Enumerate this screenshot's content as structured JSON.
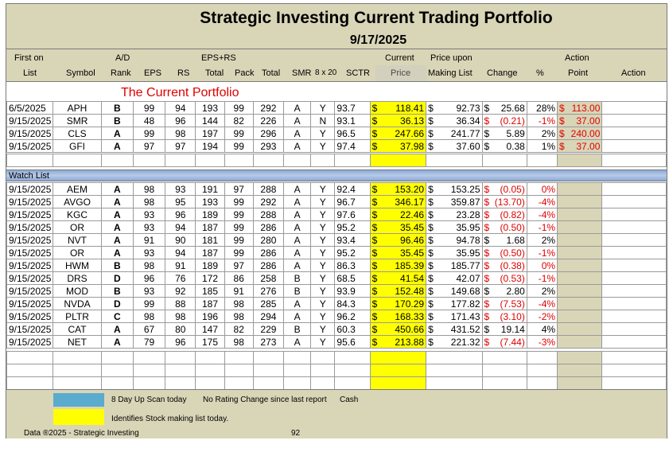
{
  "title": "Strategic Investing Current Trading Portfolio",
  "date": "9/17/2025",
  "headers": {
    "first_on": "First on",
    "list": "List",
    "symbol": "Symbol",
    "ad": "A/D",
    "rank": "Rank",
    "eps": "EPS",
    "rs": "RS",
    "eps_rs": "EPS+RS",
    "total": "Total",
    "pack": "Pack",
    "total2": "Total",
    "smr": "SMR",
    "x20": "8 x 20",
    "sctr": "SCTR",
    "current": "Current",
    "price": "Price",
    "price_upon": "Price upon",
    "making_list": "Making List",
    "change": "Change",
    "pct": "%",
    "action": "Action",
    "point": "Point",
    "action2": "Action"
  },
  "portfolio_title": "The Current Portfolio",
  "portfolio": [
    {
      "date": "6/5/2025",
      "symbol": "APH",
      "rank": "B",
      "eps": "99",
      "rs": "94",
      "total": "193",
      "pack": "99",
      "total2": "292",
      "smr": "A",
      "x20": "Y",
      "sctr": "93.7",
      "price": "118.41",
      "making": "92.73",
      "change": "25.68",
      "pct": "28%",
      "action": "113.00",
      "neg": false
    },
    {
      "date": "9/15/2025",
      "symbol": "SMR",
      "rank": "B",
      "eps": "48",
      "rs": "96",
      "total": "144",
      "pack": "82",
      "total2": "226",
      "smr": "A",
      "x20": "N",
      "sctr": "93.1",
      "price": "36.13",
      "making": "36.34",
      "change": "(0.21)",
      "pct": "-1%",
      "action": "37.00",
      "neg": true
    },
    {
      "date": "9/15/2025",
      "symbol": "CLS",
      "rank": "A",
      "eps": "99",
      "rs": "98",
      "total": "197",
      "pack": "99",
      "total2": "296",
      "smr": "A",
      "x20": "Y",
      "sctr": "96.5",
      "price": "247.66",
      "making": "241.77",
      "change": "5.89",
      "pct": "2%",
      "action": "240.00",
      "neg": false
    },
    {
      "date": "9/15/2025",
      "symbol": "GFI",
      "rank": "A",
      "eps": "97",
      "rs": "97",
      "total": "194",
      "pack": "99",
      "total2": "293",
      "smr": "A",
      "x20": "Y",
      "sctr": "97.4",
      "price": "37.98",
      "making": "37.60",
      "change": "0.38",
      "pct": "1%",
      "action": "37.00",
      "neg": false
    }
  ],
  "watch_label": "Watch List",
  "watch": [
    {
      "date": "9/15/2025",
      "symbol": "AEM",
      "rank": "A",
      "eps": "98",
      "rs": "93",
      "total": "191",
      "pack": "97",
      "total2": "288",
      "smr": "A",
      "x20": "Y",
      "sctr": "92.4",
      "price": "153.20",
      "making": "153.25",
      "change": "(0.05)",
      "pct": "0%",
      "neg": true
    },
    {
      "date": "9/15/2025",
      "symbol": "AVGO",
      "rank": "A",
      "eps": "98",
      "rs": "95",
      "total": "193",
      "pack": "99",
      "total2": "292",
      "smr": "A",
      "x20": "Y",
      "sctr": "96.7",
      "price": "346.17",
      "making": "359.87",
      "change": "(13.70)",
      "pct": "-4%",
      "neg": true
    },
    {
      "date": "9/15/2025",
      "symbol": "KGC",
      "rank": "A",
      "eps": "93",
      "rs": "96",
      "total": "189",
      "pack": "99",
      "total2": "288",
      "smr": "A",
      "x20": "Y",
      "sctr": "97.6",
      "price": "22.46",
      "making": "23.28",
      "change": "(0.82)",
      "pct": "-4%",
      "neg": true
    },
    {
      "date": "9/15/2025",
      "symbol": "OR",
      "rank": "A",
      "eps": "93",
      "rs": "94",
      "total": "187",
      "pack": "99",
      "total2": "286",
      "smr": "A",
      "x20": "Y",
      "sctr": "95.2",
      "price": "35.45",
      "making": "35.95",
      "change": "(0.50)",
      "pct": "-1%",
      "neg": true
    },
    {
      "date": "9/15/2025",
      "symbol": "NVT",
      "rank": "A",
      "eps": "91",
      "rs": "90",
      "total": "181",
      "pack": "99",
      "total2": "280",
      "smr": "A",
      "x20": "Y",
      "sctr": "93.4",
      "price": "96.46",
      "making": "94.78",
      "change": "1.68",
      "pct": "2%",
      "neg": false
    },
    {
      "date": "9/15/2025",
      "symbol": "OR",
      "rank": "A",
      "eps": "93",
      "rs": "94",
      "total": "187",
      "pack": "99",
      "total2": "286",
      "smr": "A",
      "x20": "Y",
      "sctr": "95.2",
      "price": "35.45",
      "making": "35.95",
      "change": "(0.50)",
      "pct": "-1%",
      "neg": true
    },
    {
      "date": "9/15/2025",
      "symbol": "HWM",
      "rank": "B",
      "eps": "98",
      "rs": "91",
      "total": "189",
      "pack": "97",
      "total2": "286",
      "smr": "A",
      "x20": "Y",
      "sctr": "86.3",
      "price": "185.39",
      "making": "185.77",
      "change": "(0.38)",
      "pct": "0%",
      "neg": true
    },
    {
      "date": "9/15/2025",
      "symbol": "DRS",
      "rank": "D",
      "eps": "96",
      "rs": "76",
      "total": "172",
      "pack": "86",
      "total2": "258",
      "smr": "B",
      "x20": "Y",
      "sctr": "68.5",
      "price": "41.54",
      "making": "42.07",
      "change": "(0.53)",
      "pct": "-1%",
      "neg": true
    },
    {
      "date": "9/15/2025",
      "symbol": "MOD",
      "rank": "B",
      "eps": "93",
      "rs": "92",
      "total": "185",
      "pack": "91",
      "total2": "276",
      "smr": "B",
      "x20": "Y",
      "sctr": "93.9",
      "price": "152.48",
      "making": "149.68",
      "change": "2.80",
      "pct": "2%",
      "neg": false
    },
    {
      "date": "9/15/2025",
      "symbol": "NVDA",
      "rank": "D",
      "eps": "99",
      "rs": "88",
      "total": "187",
      "pack": "98",
      "total2": "285",
      "smr": "A",
      "x20": "Y",
      "sctr": "84.3",
      "price": "170.29",
      "making": "177.82",
      "change": "(7.53)",
      "pct": "-4%",
      "neg": true
    },
    {
      "date": "9/15/2025",
      "symbol": "PLTR",
      "rank": "C",
      "eps": "98",
      "rs": "98",
      "total": "196",
      "pack": "98",
      "total2": "294",
      "smr": "A",
      "x20": "Y",
      "sctr": "96.2",
      "price": "168.33",
      "making": "171.43",
      "change": "(3.10)",
      "pct": "-2%",
      "neg": true
    },
    {
      "date": "9/15/2025",
      "symbol": "CAT",
      "rank": "A",
      "eps": "67",
      "rs": "80",
      "total": "147",
      "pack": "82",
      "total2": "229",
      "smr": "B",
      "x20": "Y",
      "sctr": "60.3",
      "price": "450.66",
      "making": "431.52",
      "change": "19.14",
      "pct": "4%",
      "neg": false
    },
    {
      "date": "9/15/2025",
      "symbol": "NET",
      "rank": "A",
      "eps": "79",
      "rs": "96",
      "total": "175",
      "pack": "98",
      "total2": "273",
      "smr": "A",
      "x20": "Y",
      "sctr": "95.6",
      "price": "213.88",
      "making": "221.32",
      "change": "(7.44)",
      "pct": "-3%",
      "neg": true
    }
  ],
  "legend": {
    "scan": "8 Day Up Scan today",
    "no_change": "No Rating Change since last report",
    "cash": "Cash",
    "identifies": "Identifies Stock making list today."
  },
  "footer": {
    "copyright": "Data ®2025 - Strategic Investing",
    "page": "92"
  },
  "colors": {
    "tan": "#d9d5b7",
    "yellow": "#ffff00",
    "red": "#e00000",
    "blue": "#5aabce"
  },
  "currency": "$"
}
